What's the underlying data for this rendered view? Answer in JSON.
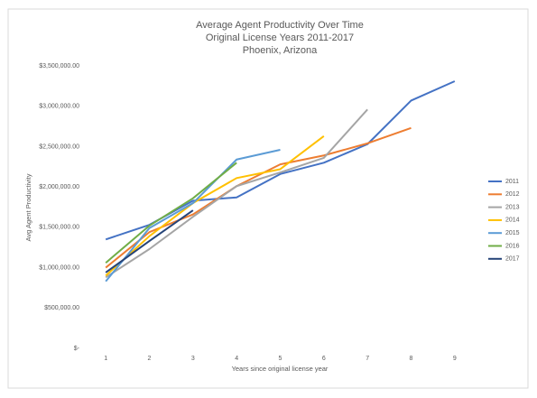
{
  "chart_data": {
    "type": "line",
    "title": "Average Agent Productivity Over Time",
    "subtitle": [
      "Original License Years 2011-2017",
      "Phoenix, Arizona"
    ],
    "xlabel": "Years since original license year",
    "ylabel": "Avg Agent Productivity",
    "x": [
      1,
      2,
      3,
      4,
      5,
      6,
      7,
      8,
      9
    ],
    "xlim": [
      0.5,
      9.5
    ],
    "xticks": [
      1,
      2,
      3,
      4,
      5,
      6,
      7,
      8,
      9
    ],
    "ylim": [
      0,
      3500000
    ],
    "yticks": [
      {
        "value": 0,
        "label": "$-"
      },
      {
        "value": 500000,
        "label": "$500,000.00"
      },
      {
        "value": 1000000,
        "label": "$1,000,000.00"
      },
      {
        "value": 1500000,
        "label": "$1,500,000.00"
      },
      {
        "value": 2000000,
        "label": "$2,000,000.00"
      },
      {
        "value": 2500000,
        "label": "$2,500,000.00"
      },
      {
        "value": 3000000,
        "label": "$3,000,000.00"
      },
      {
        "value": 3500000,
        "label": "$3,500,000.00"
      }
    ],
    "grid": false,
    "legend": "right",
    "series": [
      {
        "name": "2011",
        "color": "#4472c4",
        "values": [
          1350000,
          1530000,
          1830000,
          1870000,
          2160000,
          2300000,
          2530000,
          3070000,
          3310000
        ]
      },
      {
        "name": "2012",
        "color": "#ed7d31",
        "values": [
          1000000,
          1440000,
          1660000,
          2010000,
          2280000,
          2390000,
          2540000,
          2730000,
          null
        ]
      },
      {
        "name": "2013",
        "color": "#a5a5a5",
        "values": [
          880000,
          1230000,
          1630000,
          2010000,
          2180000,
          2360000,
          2960000,
          null,
          null
        ]
      },
      {
        "name": "2014",
        "color": "#ffc000",
        "values": [
          900000,
          1390000,
          1800000,
          2110000,
          2220000,
          2630000,
          null,
          null,
          null
        ]
      },
      {
        "name": "2015",
        "color": "#5b9bd5",
        "values": [
          830000,
          1490000,
          1800000,
          2340000,
          2460000,
          null,
          null,
          null,
          null
        ]
      },
      {
        "name": "2016",
        "color": "#70ad47",
        "values": [
          1060000,
          1520000,
          1860000,
          2300000,
          null,
          null,
          null,
          null,
          null
        ]
      },
      {
        "name": "2017",
        "color": "#264478",
        "values": [
          940000,
          1330000,
          1710000,
          null,
          null,
          null,
          null,
          null,
          null
        ]
      }
    ]
  }
}
